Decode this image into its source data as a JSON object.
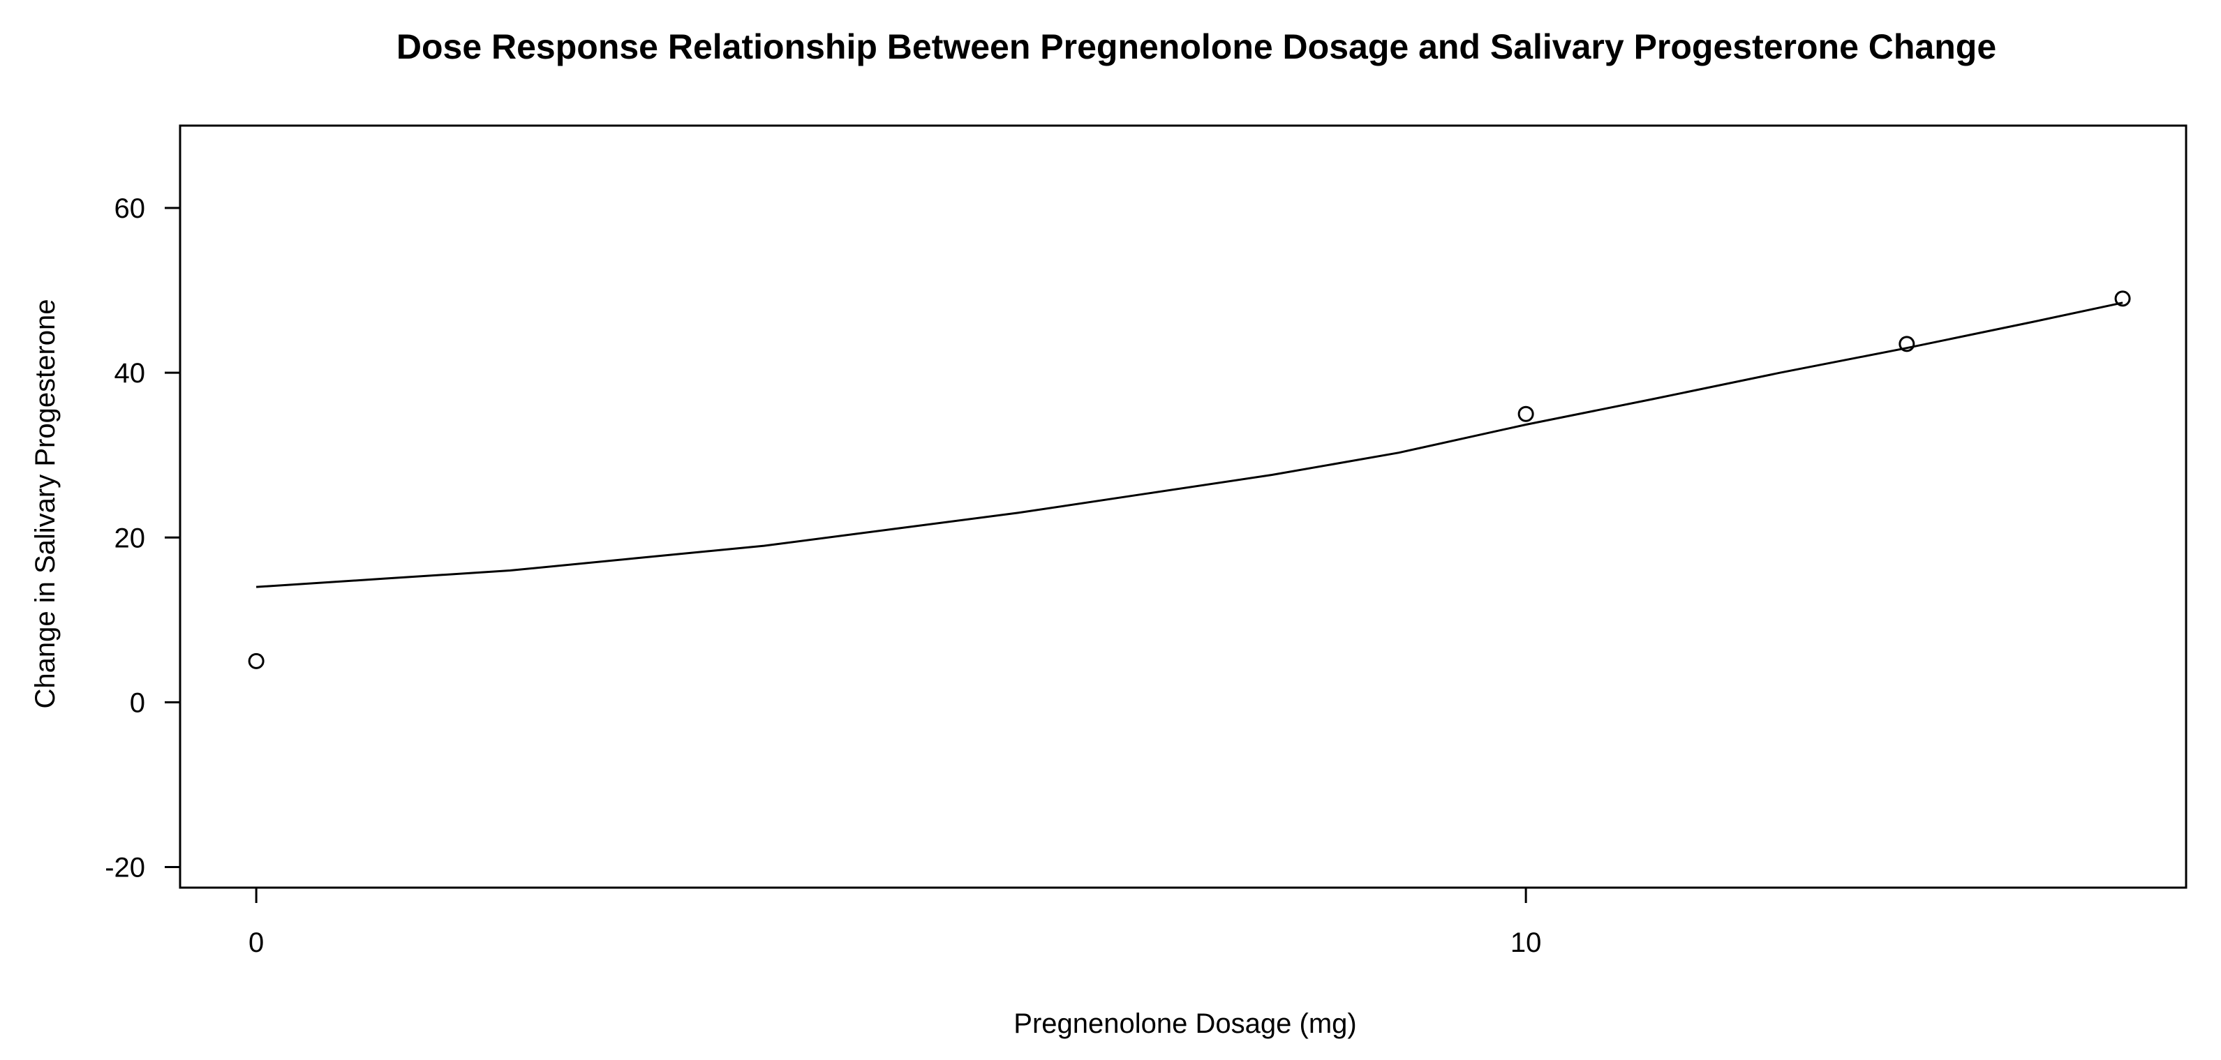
{
  "chart_data": {
    "type": "scatter",
    "title": "Dose Response Relationship Between Pregnenolone Dosage and Salivary Progesterone Change",
    "xlabel": "Pregnenolone Dosage (mg)",
    "ylabel": "Change in Salivary Progesterone",
    "xlim": [
      -0.6,
      15.2
    ],
    "ylim": [
      -22.5,
      70
    ],
    "x_ticks": [
      0,
      10
    ],
    "x_tick_labels": [
      "0",
      "10"
    ],
    "y_ticks": [
      -20,
      0,
      20,
      40,
      60
    ],
    "y_tick_labels": [
      "-20",
      "0",
      "20",
      "40",
      "60"
    ],
    "grid": false,
    "legend": "none",
    "series": [
      {
        "type": "scatter",
        "x": [
          0,
          10,
          13,
          14.7
        ],
        "y": [
          5,
          35,
          43.5,
          49
        ]
      },
      {
        "type": "line",
        "x": [
          0,
          1,
          2,
          3,
          4,
          5,
          6,
          7,
          8,
          9,
          10,
          11,
          12,
          13,
          14,
          14.7
        ],
        "y": [
          14,
          15,
          16,
          17.5,
          19,
          21,
          23,
          25.3,
          27.6,
          30.3,
          33.7,
          36.8,
          40,
          43,
          46.2,
          48.5
        ]
      }
    ]
  }
}
